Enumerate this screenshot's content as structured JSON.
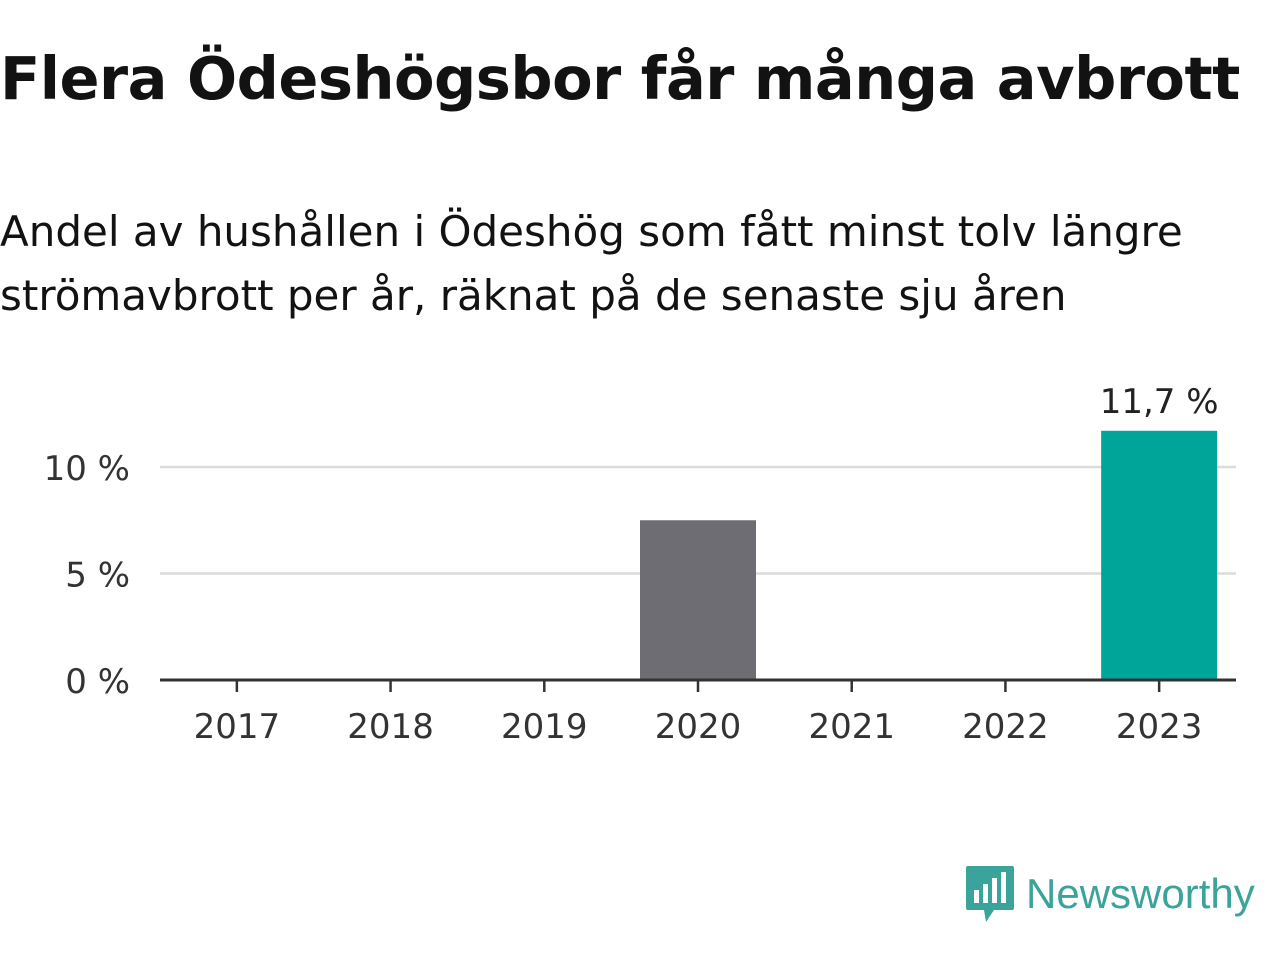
{
  "title": "Flera Ödeshögsbor får många avbrott",
  "subtitle": "Andel av hushållen i Ödeshög som fått minst tolv längre strömavbrott per år, räknat på de senaste sju åren",
  "brand": {
    "name": "Newsworthy",
    "icon": "newsworthy-logo-icon",
    "color": "#3aa39a"
  },
  "chart_data": {
    "type": "bar",
    "categories": [
      "2017",
      "2018",
      "2019",
      "2020",
      "2021",
      "2022",
      "2023"
    ],
    "values": [
      0,
      0,
      0,
      7.5,
      0,
      0,
      11.7
    ],
    "colors": [
      "#6d6d73",
      "#6d6d73",
      "#6d6d73",
      "#6d6d73",
      "#6d6d73",
      "#6d6d73",
      "#00a59a"
    ],
    "data_labels": [
      "",
      "",
      "",
      "",
      "",
      "",
      "11,7 %"
    ],
    "ylim": [
      0,
      12
    ],
    "yticks": [
      0,
      5,
      10
    ],
    "ytick_labels": [
      "0 %",
      "5 %",
      "10 %"
    ],
    "grid": true,
    "legend": "none"
  }
}
